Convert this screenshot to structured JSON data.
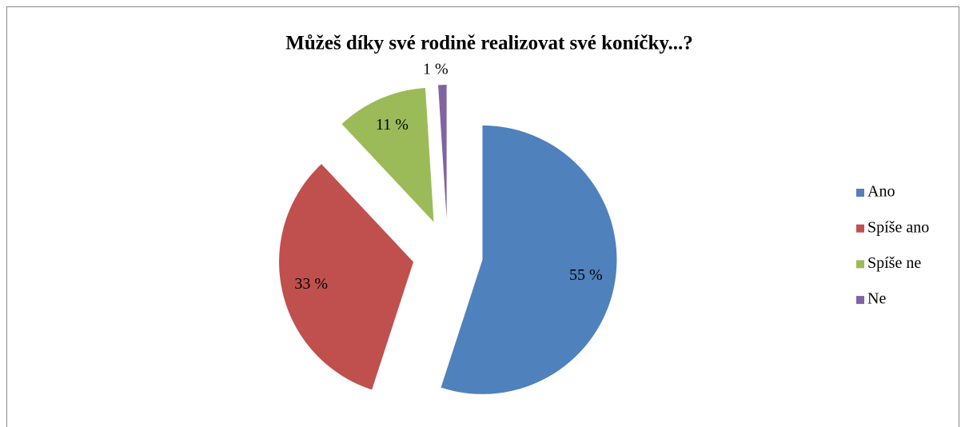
{
  "chart_data": {
    "type": "pie",
    "title": "Můžeš díky své rodině realizovat své koníčky...?",
    "categories": [
      "Ano",
      "Spíše ano",
      "Spíše ne",
      "Ne"
    ],
    "values": [
      55,
      33,
      11,
      1
    ],
    "value_labels": [
      "55 %",
      "33 %",
      "11 %",
      "1 %"
    ],
    "colors": [
      "#4f81bd",
      "#c0504d",
      "#9bbb59",
      "#8064a2"
    ],
    "legend": "right"
  }
}
